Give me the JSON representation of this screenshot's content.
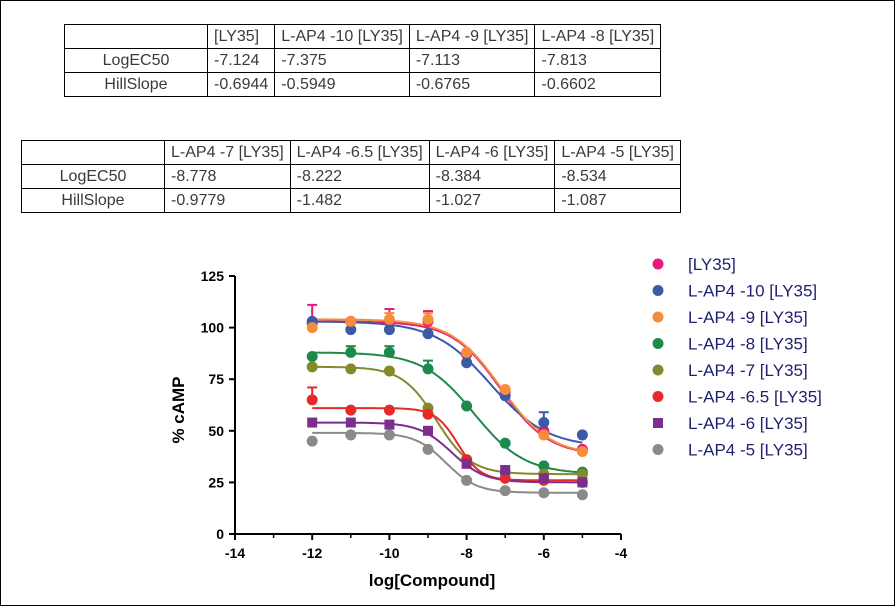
{
  "table1": {
    "headers": [
      "",
      "[LY35]",
      "L-AP4 -10 [LY35]",
      "L-AP4 -9 [LY35]",
      "L-AP4 -8 [LY35]"
    ],
    "rows": [
      [
        "LogEC50",
        "-7.124",
        "-7.375",
        "-7.113",
        "-7.813"
      ],
      [
        "HillSlope",
        "-0.6944",
        "-0.5949",
        "-0.6765",
        "-0.6602"
      ]
    ]
  },
  "table2": {
    "headers": [
      "",
      "L-AP4 -7 [LY35]",
      "L-AP4 -6.5 [LY35]",
      "L-AP4 -6 [LY35]",
      "L-AP4 -5 [LY35]"
    ],
    "rows": [
      [
        "LogEC50",
        "-8.778",
        "-8.222",
        "-8.384",
        "-8.534"
      ],
      [
        "HillSlope",
        "-0.9779",
        "-1.482",
        "-1.027",
        "-1.087"
      ]
    ]
  },
  "chart_data": {
    "type": "scatter",
    "xlabel": "log[Compound]",
    "ylabel": "% cAMP",
    "xlim": [
      -14,
      -4
    ],
    "ylim": [
      0,
      125
    ],
    "xticks": [
      "-14",
      "-12",
      "-10",
      "-8",
      "-6",
      "-4"
    ],
    "yticks": [
      "0",
      "25",
      "50",
      "75",
      "100",
      "125"
    ],
    "legend_position": "right",
    "x": [
      -12,
      -11,
      -10,
      -9,
      -8,
      -7,
      -6,
      -5
    ],
    "series": [
      {
        "name": "[LY35]",
        "color": "#e8197a",
        "marker": "circle",
        "values": [
          102,
          103,
          103,
          103,
          87,
          69,
          50,
          41
        ],
        "err": [
          9,
          0,
          6,
          5,
          0,
          0,
          0,
          0
        ],
        "fit": {
          "top": 103,
          "bottom": 38,
          "logec50": -7.124,
          "hill": -0.6944
        }
      },
      {
        "name": "L-AP4 -10 [LY35]",
        "color": "#3b5aa8",
        "marker": "circle",
        "values": [
          103,
          99,
          99,
          97,
          83,
          67,
          54,
          48
        ],
        "err": [
          0,
          3,
          0,
          0,
          0,
          0,
          5,
          0
        ],
        "fit": {
          "top": 103,
          "bottom": 42,
          "logec50": -7.375,
          "hill": -0.5949
        }
      },
      {
        "name": "L-AP4 -9 [LY35]",
        "color": "#f58d3a",
        "marker": "circle",
        "values": [
          100,
          103,
          104,
          104,
          88,
          70,
          48,
          40
        ],
        "err": [
          0,
          0,
          3,
          3,
          0,
          0,
          0,
          0
        ],
        "fit": {
          "top": 104,
          "bottom": 38,
          "logec50": -7.113,
          "hill": -0.6765
        }
      },
      {
        "name": "L-AP4 -8 [LY35]",
        "color": "#1d8a4c",
        "marker": "circle",
        "values": [
          86,
          88,
          88,
          80,
          62,
          44,
          33,
          30
        ],
        "err": [
          0,
          3,
          3,
          4,
          0,
          0,
          0,
          0
        ],
        "fit": {
          "top": 88,
          "bottom": 29,
          "logec50": -7.813,
          "hill": -0.6602
        }
      },
      {
        "name": "L-AP4 -7 [LY35]",
        "color": "#848a2c",
        "marker": "circle",
        "values": [
          81,
          80,
          79,
          61,
          36,
          30,
          29,
          29
        ],
        "err": [
          0,
          0,
          0,
          0,
          0,
          0,
          0,
          0
        ],
        "fit": {
          "top": 81,
          "bottom": 29,
          "logec50": -8.778,
          "hill": -0.9779
        }
      },
      {
        "name": "L-AP4 -6.5 [LY35]",
        "color": "#e62a2a",
        "marker": "circle",
        "values": [
          65,
          60,
          60,
          58,
          36,
          27,
          26,
          25
        ],
        "err": [
          6,
          0,
          0,
          0,
          0,
          0,
          0,
          0
        ],
        "fit": {
          "top": 61,
          "bottom": 26,
          "logec50": -8.222,
          "hill": -1.482
        }
      },
      {
        "name": "L-AP4 -6 [LY35]",
        "color": "#7b2e8e",
        "marker": "square",
        "values": [
          54,
          54,
          53,
          50,
          34,
          31,
          27,
          25
        ],
        "err": [
          0,
          0,
          0,
          0,
          0,
          0,
          0,
          0
        ],
        "fit": {
          "top": 54,
          "bottom": 25,
          "logec50": -8.384,
          "hill": -1.027
        }
      },
      {
        "name": "L-AP4 -5 [LY35]",
        "color": "#8a8a8a",
        "marker": "circle",
        "values": [
          45,
          48,
          48,
          41,
          26,
          21,
          20,
          19
        ],
        "err": [
          0,
          0,
          0,
          0,
          0,
          0,
          0,
          0
        ],
        "fit": {
          "top": 49,
          "bottom": 20,
          "logec50": -8.534,
          "hill": -1.087
        }
      }
    ]
  }
}
